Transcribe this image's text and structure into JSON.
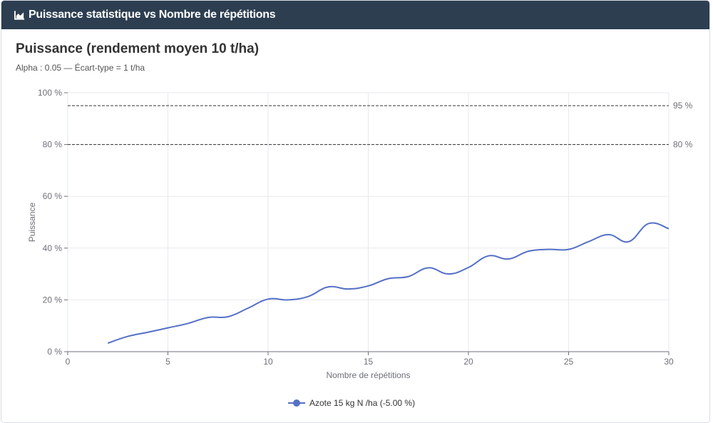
{
  "header": {
    "title": "Puissance statistique vs Nombre de répétitions",
    "icon": "area-chart-icon"
  },
  "chart_data": {
    "type": "line",
    "title": "Puissance (rendement moyen 10 t/ha)",
    "subtitle": "Alpha : 0.05 — Écart-type = 1 t/ha",
    "xlabel": "Nombre de répétitions",
    "ylabel": "Puissance",
    "xlim": [
      0,
      30
    ],
    "ylim": [
      0,
      100
    ],
    "xticks": [
      0,
      5,
      10,
      15,
      20,
      25,
      30
    ],
    "yticks": [
      0,
      20,
      40,
      60,
      80,
      100
    ],
    "ytick_labels": [
      "0 %",
      "20 %",
      "40 %",
      "60 %",
      "80 %",
      "100 %"
    ],
    "grid": true,
    "legend_position": "bottom",
    "reference_lines": [
      {
        "y": 95,
        "label": "95 %"
      },
      {
        "y": 80,
        "label": "80 %"
      }
    ],
    "series": [
      {
        "name": "Azote 15 kg N /ha (-5.00 %)",
        "color": "#5470c6",
        "x": [
          2,
          3,
          4,
          5,
          6,
          7,
          8,
          9,
          10,
          11,
          12,
          13,
          14,
          15,
          16,
          17,
          18,
          19,
          20,
          21,
          22,
          23,
          24,
          25,
          26,
          27,
          28,
          29,
          30
        ],
        "values": [
          3.3,
          5.9,
          7.5,
          9.2,
          10.9,
          13.2,
          13.5,
          16.8,
          20.3,
          20.0,
          21.3,
          25.0,
          24.2,
          25.4,
          28.2,
          29.0,
          32.4,
          30.0,
          32.5,
          37.0,
          35.8,
          38.8,
          39.5,
          39.5,
          42.5,
          45.2,
          42.5,
          49.5,
          47.5
        ]
      }
    ]
  }
}
